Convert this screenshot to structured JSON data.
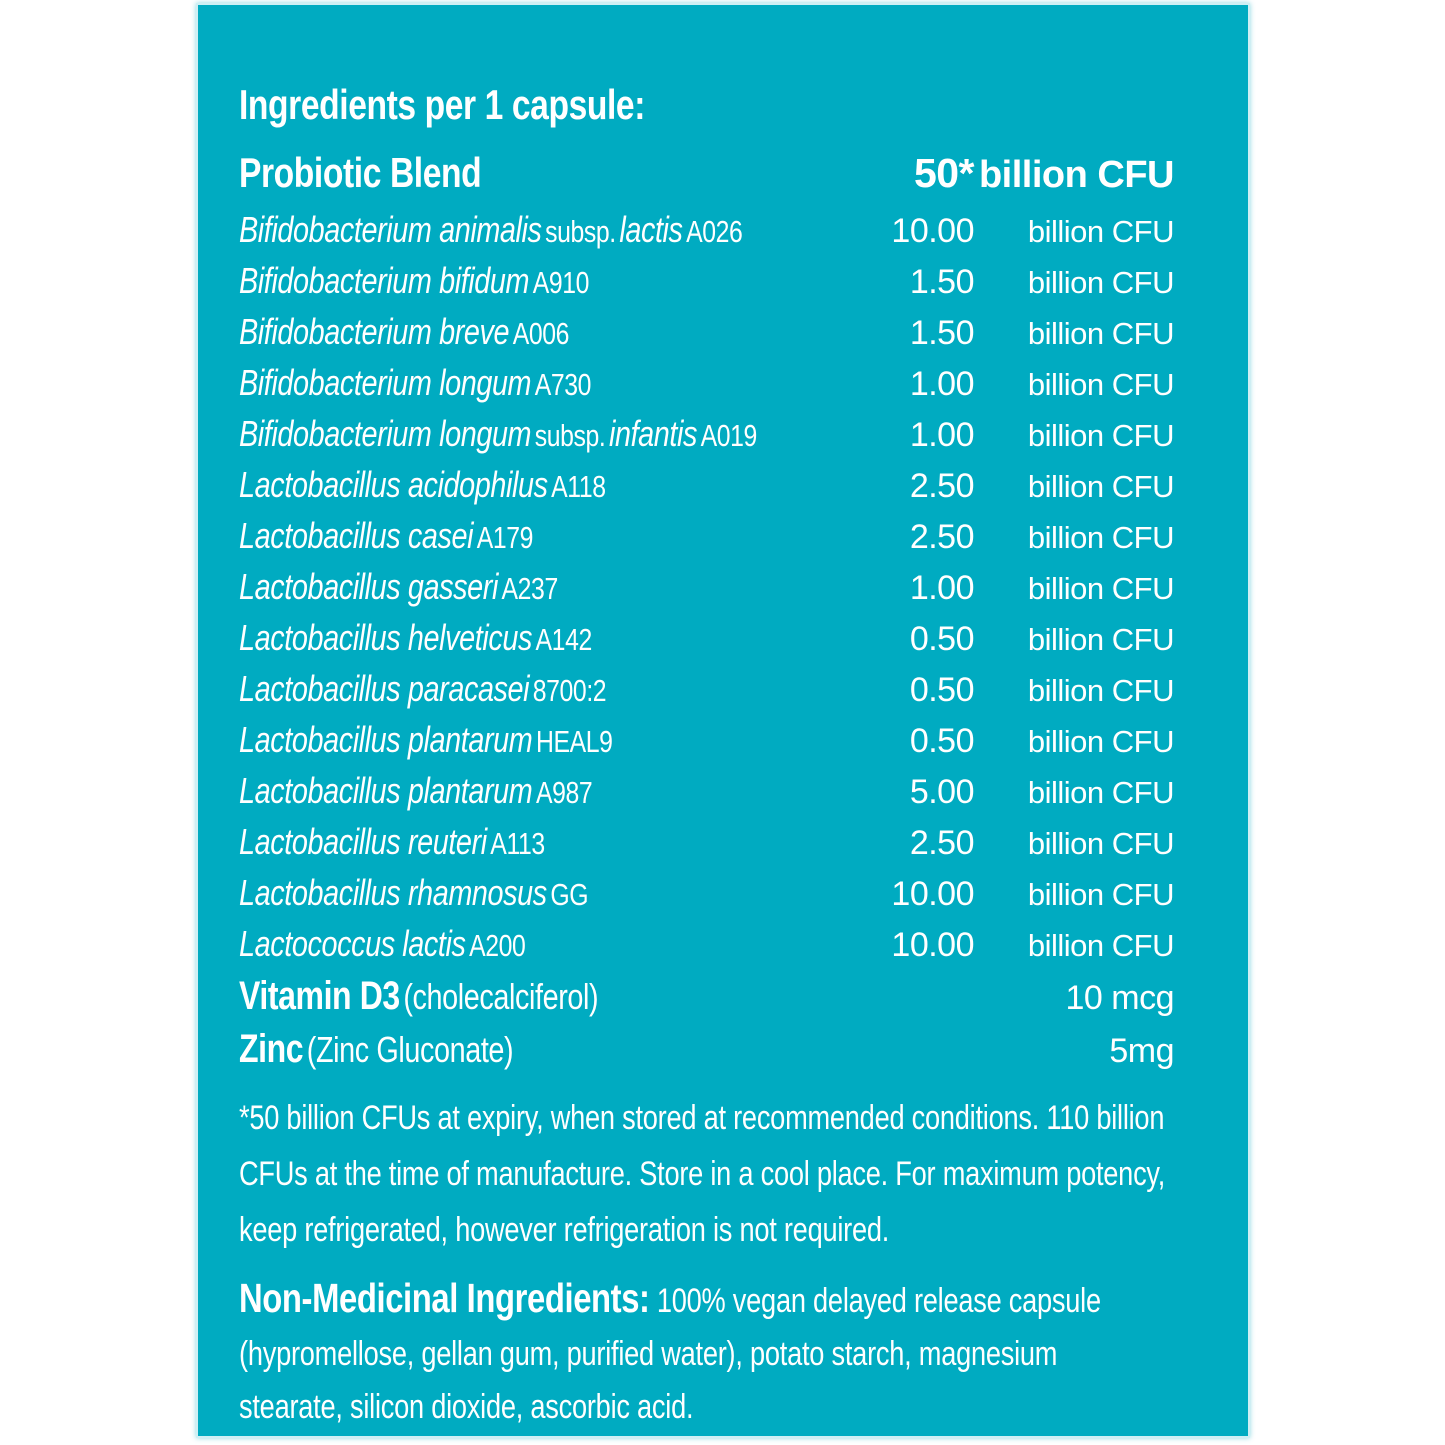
{
  "colors": {
    "panel_bg": "#00abc1",
    "panel_edge": "#cfeff4",
    "text": "#ffffff",
    "page_bg": "#ffffff"
  },
  "panel": {
    "title": "Ingredients per 1 capsule:",
    "header": {
      "label": "Probiotic Blend",
      "amount": "50*",
      "unit": "billion CFU"
    },
    "rows": [
      {
        "name": "Bifidobacterium animalis",
        "subsp": "subsp.",
        "name2": "lactis",
        "strain": "A026",
        "amount": "10.00",
        "unit": "billion CFU"
      },
      {
        "name": "Bifidobacterium bifidum",
        "strain": "A910",
        "amount": "1.50",
        "unit": "billion CFU"
      },
      {
        "name": "Bifidobacterium breve",
        "strain": "A006",
        "amount": "1.50",
        "unit": "billion CFU"
      },
      {
        "name": "Bifidobacterium longum",
        "strain": "A730",
        "amount": "1.00",
        "unit": "billion CFU"
      },
      {
        "name": "Bifidobacterium longum",
        "subsp": "subsp.",
        "name2": "infantis",
        "strain": "A019",
        "amount": "1.00",
        "unit": "billion CFU"
      },
      {
        "name": "Lactobacillus acidophilus",
        "strain": "A118",
        "amount": "2.50",
        "unit": "billion CFU"
      },
      {
        "name": "Lactobacillus casei",
        "strain": "A179",
        "amount": "2.50",
        "unit": "billion CFU"
      },
      {
        "name": "Lactobacillus gasseri",
        "strain": "A237",
        "amount": "1.00",
        "unit": "billion CFU"
      },
      {
        "name": "Lactobacillus helveticus",
        "strain": "A142",
        "amount": "0.50",
        "unit": "billion CFU"
      },
      {
        "name": "Lactobacillus paracasei",
        "strain": "8700:2",
        "amount": "0.50",
        "unit": "billion CFU"
      },
      {
        "name": "Lactobacillus plantarum",
        "strain": "HEAL9",
        "amount": "0.50",
        "unit": "billion CFU"
      },
      {
        "name": "Lactobacillus plantarum",
        "strain": "A987",
        "amount": "5.00",
        "unit": "billion CFU"
      },
      {
        "name": "Lactobacillus reuteri",
        "strain": "A113",
        "amount": "2.50",
        "unit": "billion CFU"
      },
      {
        "name": "Lactobacillus rhamnosus",
        "strain": "GG",
        "amount": "10.00",
        "unit": "billion CFU"
      },
      {
        "name": "Lactococcus lactis",
        "strain": "A200",
        "amount": "10.00",
        "unit": "billion CFU"
      }
    ],
    "extra_rows": [
      {
        "label": "Vitamin D3",
        "detail": "(cholecalciferol)",
        "amount": "10 mcg"
      },
      {
        "label": "Zinc",
        "detail": "(Zinc Gluconate)",
        "amount": "5mg"
      }
    ],
    "footnote": "*50 billion CFUs at expiry, when stored at recommended conditions. 110 billion CFUs at the time of manufacture. Store in a cool place. For maximum potency, keep refrigerated, however refrigeration is not required.",
    "non_medicinal": {
      "label": "Non-Medicinal Ingredients:",
      "text": "100% vegan delayed release capsule (hypromellose, gellan gum, purified water), potato starch, magnesium stearate, silicon dioxide, ascorbic acid."
    }
  }
}
